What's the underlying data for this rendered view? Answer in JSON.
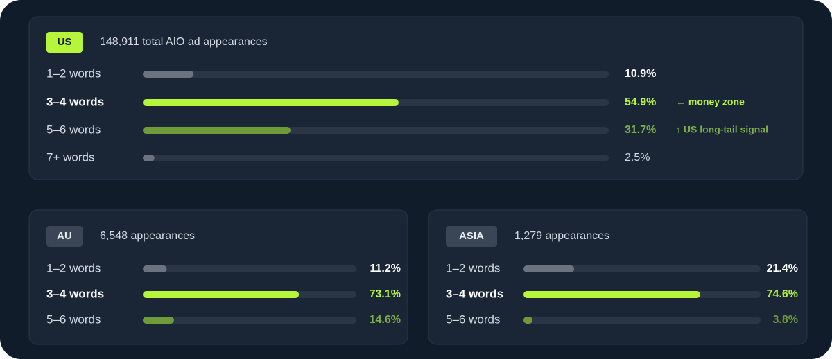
{
  "chart_data": [
    {
      "type": "bar",
      "title": "US",
      "subtitle": "148,911 total AIO ad appearances",
      "badge_color": "#b6f53a",
      "categories": [
        "1–2 words",
        "3–4 words",
        "5–6 words",
        "7+ words"
      ],
      "values": [
        10.9,
        54.9,
        31.7,
        2.5
      ],
      "value_labels": [
        "10.9%",
        "54.9%",
        "31.7%",
        "2.5%"
      ],
      "colors": [
        "#6b7380",
        "#b6f53a",
        "#6e9a3a",
        "#6b7380"
      ],
      "label_colors": [
        "#ffffff",
        "#b6f53a",
        "#7fae45",
        "#d4dae2"
      ],
      "notes": [
        null,
        "← money zone",
        "↑ US long-tail signal",
        null
      ],
      "xlim": [
        0,
        100
      ]
    },
    {
      "type": "bar",
      "title": "AU",
      "subtitle": "6,548 appearances",
      "badge_color": "#3a4656",
      "categories": [
        "1–2 words",
        "3–4 words",
        "5–6 words"
      ],
      "values": [
        11.2,
        73.1,
        14.6
      ],
      "value_labels": [
        "11.2%",
        "73.1%",
        "14.6%"
      ],
      "colors": [
        "#6b7380",
        "#b6f53a",
        "#6e9a3a"
      ],
      "label_colors": [
        "#ffffff",
        "#b6f53a",
        "#7fae45"
      ],
      "xlim": [
        0,
        100
      ]
    },
    {
      "type": "bar",
      "title": "ASIA",
      "subtitle": "1,279 appearances",
      "badge_color": "#3a4656",
      "categories": [
        "1–2 words",
        "3–4 words",
        "5–6 words"
      ],
      "values": [
        21.4,
        74.6,
        3.8
      ],
      "value_labels": [
        "21.4%",
        "74.6%",
        "3.8%"
      ],
      "colors": [
        "#6b7380",
        "#b6f53a",
        "#6e9a3a"
      ],
      "label_colors": [
        "#ffffff",
        "#b6f53a",
        "#6e9a3a"
      ],
      "xlim": [
        0,
        100
      ]
    }
  ]
}
